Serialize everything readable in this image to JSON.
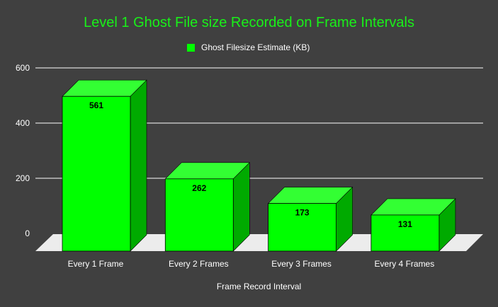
{
  "chart_data": {
    "type": "bar",
    "title": "Level 1 Ghost File size Recorded on Frame Intervals",
    "categories": [
      "Every 1 Frame",
      "Every 2 Frames",
      "Every 3 Frames",
      "Every 4 Frames"
    ],
    "series": [
      {
        "name": "Ghost Filesize Estimate (KB)",
        "values": [
          561,
          262,
          173,
          131
        ]
      }
    ],
    "xlabel": "Frame Record Interval",
    "ylabel": "",
    "ylim": [
      0,
      600
    ],
    "yticks": [
      0,
      200,
      400,
      600
    ],
    "grid": true,
    "legend_position": "top-center",
    "bar_style": "3d",
    "colors": {
      "background": "#404040",
      "title": "#19f019",
      "bar_front": "#00ff00",
      "bar_top": "#33ff33",
      "bar_side": "#00aa00",
      "floor": "#ececec",
      "gridline": "#ffffff",
      "text": "#ffffff",
      "value_label": "#000000"
    }
  }
}
